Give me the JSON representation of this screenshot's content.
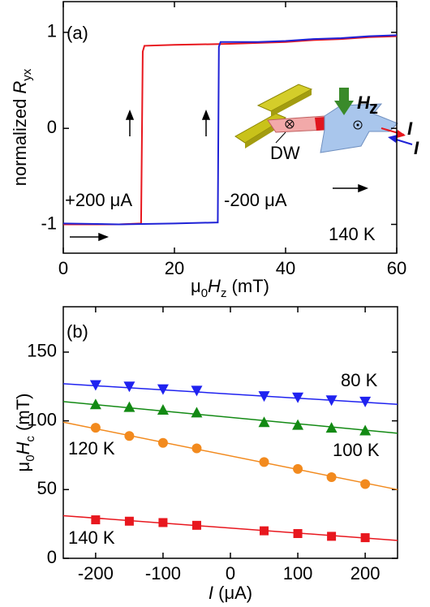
{
  "chart_data": [
    {
      "type": "line",
      "xlabel": [
        "μ",
        "0",
        "H",
        "z",
        " (mT)"
      ],
      "ylabel": [
        "normalized ",
        "R",
        "yx"
      ],
      "xlim": [
        0,
        60
      ],
      "xticks": [
        0,
        20,
        40,
        60
      ],
      "ylim": [
        -1.3,
        1.32
      ],
      "yticks": [
        -1,
        0,
        1
      ],
      "series": [
        {
          "name": "+200 μA",
          "color": "#e8171e",
          "x": [
            0,
            10,
            14,
            14.3,
            14.6,
            20,
            30,
            40,
            45,
            50,
            55,
            60
          ],
          "values": [
            -1,
            -1,
            -0.99,
            0.8,
            0.86,
            0.87,
            0.88,
            0.9,
            0.92,
            0.93,
            0.95,
            0.96
          ]
        },
        {
          "name": "-200 μA",
          "color": "#1f22d6",
          "x": [
            0,
            10,
            20,
            27.8,
            28,
            28.3,
            35,
            40,
            45,
            50,
            55,
            60
          ],
          "values": [
            -0.99,
            -1,
            -0.99,
            -0.98,
            0.85,
            0.9,
            0.9,
            0.91,
            0.93,
            0.94,
            0.96,
            0.97
          ]
        }
      ],
      "annotations": [
        "(a)",
        "140 K",
        "DW",
        "H",
        "z",
        "I",
        "I"
      ]
    },
    {
      "type": "scatter",
      "xlabel": [
        "I",
        " (μA)"
      ],
      "ylabel": [
        "μ",
        "0",
        "H",
        "c",
        " (mT)"
      ],
      "xlim": [
        -248,
        248
      ],
      "xticks": [
        -200,
        -100,
        0,
        100,
        200
      ],
      "ylim": [
        0,
        183
      ],
      "yticks": [
        0,
        50,
        100,
        150
      ],
      "series": [
        {
          "name": "80 K",
          "color": "#1f22f0",
          "marker": "triangle-down",
          "x": [
            -200,
            -150,
            -100,
            -50,
            50,
            100,
            150,
            200
          ],
          "values": [
            126,
            125,
            123,
            122,
            118,
            117,
            115,
            114
          ],
          "fit": {
            "x": [
              -248,
              248
            ],
            "values": [
              127,
              112
            ]
          }
        },
        {
          "name": "100 K",
          "color": "#138a14",
          "marker": "triangle-up",
          "x": [
            -200,
            -150,
            -100,
            -50,
            50,
            100,
            150,
            200
          ],
          "values": [
            112,
            110,
            108,
            106,
            99,
            97,
            95,
            93
          ],
          "fit": {
            "x": [
              -248,
              248
            ],
            "values": [
              114,
              91
            ]
          }
        },
        {
          "name": "120 K",
          "color": "#f28a1e",
          "marker": "circle",
          "x": [
            -200,
            -150,
            -100,
            -50,
            50,
            100,
            150,
            200
          ],
          "values": [
            95,
            89,
            84,
            80,
            70,
            65,
            59,
            54
          ],
          "fit": {
            "x": [
              -248,
              248
            ],
            "values": [
              99,
              50
            ]
          }
        },
        {
          "name": "140 K",
          "color": "#e8171e",
          "marker": "square",
          "x": [
            -200,
            -150,
            -100,
            -50,
            50,
            100,
            150,
            200
          ],
          "values": [
            28,
            27,
            26,
            24,
            20,
            18,
            16,
            15
          ],
          "fit": {
            "x": [
              -248,
              248
            ],
            "values": [
              31,
              13
            ]
          }
        }
      ],
      "annotations": [
        "(b)"
      ]
    }
  ]
}
